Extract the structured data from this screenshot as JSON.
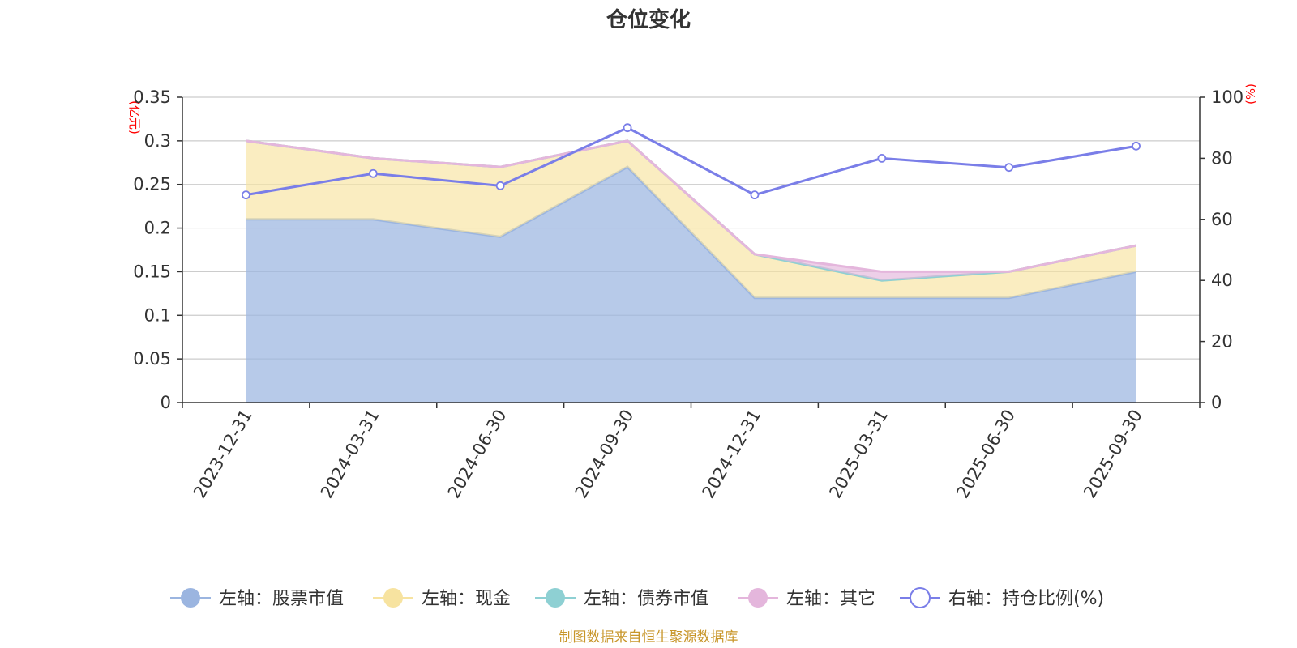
{
  "chart_data": {
    "type": "area",
    "title": "仓位变化",
    "categories": [
      "2023-12-31",
      "2024-03-31",
      "2024-06-30",
      "2024-09-30",
      "2024-12-31",
      "2025-03-31",
      "2025-06-30",
      "2025-09-30"
    ],
    "left_axis": {
      "unit": "(亿元)",
      "ylim": [
        0,
        0.35
      ],
      "ticks": [
        "0",
        "0.05",
        "0.1",
        "0.15",
        "0.2",
        "0.25",
        "0.3",
        "0.35"
      ]
    },
    "right_axis": {
      "unit": "(%)",
      "ylim": [
        0,
        100
      ],
      "ticks": [
        "0",
        "20",
        "40",
        "60",
        "80",
        "100"
      ]
    },
    "series": [
      {
        "name": "左轴：股票市值",
        "axis": "left",
        "stacked": true,
        "color": "#9bb5e0",
        "values": [
          0.21,
          0.21,
          0.19,
          0.27,
          0.12,
          0.12,
          0.12,
          0.15
        ]
      },
      {
        "name": "左轴：现金",
        "axis": "left",
        "stacked": true,
        "color": "#f7e3a0",
        "values": [
          0.09,
          0.07,
          0.08,
          0.03,
          0.05,
          0.02,
          0.03,
          0.03
        ]
      },
      {
        "name": "左轴：债券市值",
        "axis": "left",
        "stacked": true,
        "color": "#8ed0d3",
        "values": [
          0,
          0,
          0,
          0,
          0,
          0,
          0,
          0
        ]
      },
      {
        "name": "左轴：其它",
        "axis": "left",
        "stacked": true,
        "color": "#e4b6dc",
        "values": [
          0,
          0,
          0,
          0,
          0,
          0.01,
          0,
          0
        ]
      },
      {
        "name": "右轴：持仓比例(%)",
        "axis": "right",
        "type": "line",
        "color": "#7a7ee8",
        "values": [
          68,
          75,
          71,
          90,
          68,
          80,
          77,
          84
        ]
      }
    ],
    "grid": true,
    "legend_position": "bottom"
  },
  "source_note": "制图数据来自恒生聚源数据库"
}
